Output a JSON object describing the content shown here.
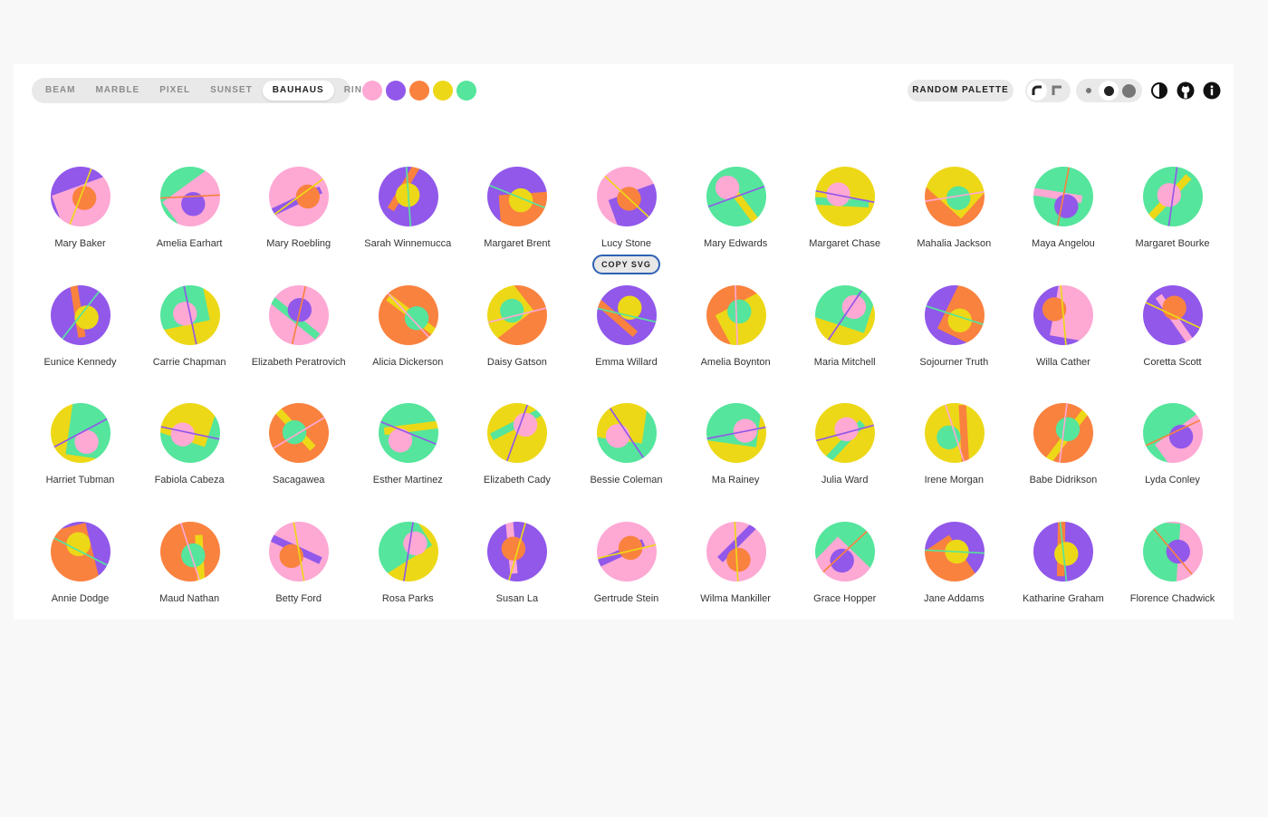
{
  "variants": [
    {
      "label": "BEAM",
      "active": false
    },
    {
      "label": "MARBLE",
      "active": false
    },
    {
      "label": "PIXEL",
      "active": false
    },
    {
      "label": "SUNSET",
      "active": false
    },
    {
      "label": "BAUHAUS",
      "active": true
    },
    {
      "label": "RING",
      "active": false
    }
  ],
  "palette": [
    "#fea8d4",
    "#9158ea",
    "#f9823f",
    "#edd817",
    "#55e59c"
  ],
  "random_palette_label": "RANDOM PALETTE",
  "shape_options": [
    "round-corner-icon",
    "square-corner-icon"
  ],
  "size_options": [
    "small-dot-icon",
    "medium-dot-icon",
    "large-dot-icon"
  ],
  "icons": [
    "contrast-icon",
    "github-icon",
    "info-icon"
  ],
  "copy_svg_label": "COPY SVG",
  "avatars": [
    {
      "name": "Mary Baker",
      "colors": [
        "#9158ea",
        "#fea8d4",
        "#f9823f",
        "#edd817"
      ]
    },
    {
      "name": "Amelia Earhart",
      "colors": [
        "#55e59c",
        "#fea8d4",
        "#9158ea",
        "#f9823f"
      ]
    },
    {
      "name": "Mary Roebling",
      "colors": [
        "#fea8d4",
        "#9158ea",
        "#f9823f",
        "#edd817"
      ]
    },
    {
      "name": "Sarah Winnemucca",
      "colors": [
        "#9158ea",
        "#f9823f",
        "#edd817",
        "#55e59c"
      ]
    },
    {
      "name": "Margaret Brent",
      "colors": [
        "#9158ea",
        "#f9823f",
        "#edd817",
        "#55e59c"
      ]
    },
    {
      "name": "Lucy Stone",
      "colors": [
        "#fea8d4",
        "#9158ea",
        "#f9823f",
        "#edd817"
      ]
    },
    {
      "name": "Mary Edwards",
      "colors": [
        "#55e59c",
        "#edd817",
        "#fea8d4",
        "#9158ea"
      ]
    },
    {
      "name": "Margaret Chase",
      "colors": [
        "#edd817",
        "#55e59c",
        "#fea8d4",
        "#9158ea"
      ]
    },
    {
      "name": "Mahalia Jackson",
      "colors": [
        "#f9823f",
        "#edd817",
        "#55e59c",
        "#fea8d4"
      ]
    },
    {
      "name": "Maya Angelou",
      "colors": [
        "#55e59c",
        "#fea8d4",
        "#9158ea",
        "#f9823f"
      ]
    },
    {
      "name": "Margaret Bourke",
      "colors": [
        "#55e59c",
        "#edd817",
        "#fea8d4",
        "#9158ea"
      ]
    },
    {
      "name": "Eunice Kennedy",
      "colors": [
        "#9158ea",
        "#f9823f",
        "#edd817",
        "#55e59c"
      ]
    },
    {
      "name": "Carrie Chapman",
      "colors": [
        "#edd817",
        "#55e59c",
        "#fea8d4",
        "#9158ea"
      ]
    },
    {
      "name": "Elizabeth Peratrovich",
      "colors": [
        "#fea8d4",
        "#55e59c",
        "#9158ea",
        "#f9823f"
      ]
    },
    {
      "name": "Alicia Dickerson",
      "colors": [
        "#f9823f",
        "#edd817",
        "#55e59c",
        "#fea8d4"
      ]
    },
    {
      "name": "Daisy Gatson",
      "colors": [
        "#f9823f",
        "#edd817",
        "#55e59c",
        "#fea8d4"
      ]
    },
    {
      "name": "Emma Willard",
      "colors": [
        "#9158ea",
        "#f9823f",
        "#edd817",
        "#55e59c"
      ]
    },
    {
      "name": "Amelia Boynton",
      "colors": [
        "#f9823f",
        "#edd817",
        "#55e59c",
        "#fea8d4"
      ]
    },
    {
      "name": "Maria Mitchell",
      "colors": [
        "#edd817",
        "#55e59c",
        "#fea8d4",
        "#9158ea"
      ]
    },
    {
      "name": "Sojourner Truth",
      "colors": [
        "#9158ea",
        "#f9823f",
        "#edd817",
        "#55e59c"
      ]
    },
    {
      "name": "Willa Cather",
      "colors": [
        "#9158ea",
        "#fea8d4",
        "#f9823f",
        "#edd817"
      ]
    },
    {
      "name": "Coretta Scott",
      "colors": [
        "#9158ea",
        "#fea8d4",
        "#f9823f",
        "#edd817"
      ]
    },
    {
      "name": "Harriet Tubman",
      "colors": [
        "#edd817",
        "#55e59c",
        "#fea8d4",
        "#9158ea"
      ]
    },
    {
      "name": "Fabiola Cabeza",
      "colors": [
        "#55e59c",
        "#edd817",
        "#fea8d4",
        "#9158ea"
      ]
    },
    {
      "name": "Sacagawea",
      "colors": [
        "#f9823f",
        "#edd817",
        "#55e59c",
        "#fea8d4"
      ]
    },
    {
      "name": "Esther Martinez",
      "colors": [
        "#55e59c",
        "#edd817",
        "#fea8d4",
        "#9158ea"
      ]
    },
    {
      "name": "Elizabeth Cady",
      "colors": [
        "#edd817",
        "#55e59c",
        "#fea8d4",
        "#9158ea"
      ]
    },
    {
      "name": "Bessie Coleman",
      "colors": [
        "#55e59c",
        "#edd817",
        "#fea8d4",
        "#9158ea"
      ]
    },
    {
      "name": "Ma Rainey",
      "colors": [
        "#edd817",
        "#55e59c",
        "#fea8d4",
        "#9158ea"
      ]
    },
    {
      "name": "Julia Ward",
      "colors": [
        "#edd817",
        "#55e59c",
        "#fea8d4",
        "#9158ea"
      ]
    },
    {
      "name": "Irene Morgan",
      "colors": [
        "#edd817",
        "#f9823f",
        "#55e59c",
        "#fea8d4"
      ]
    },
    {
      "name": "Babe Didrikson",
      "colors": [
        "#f9823f",
        "#edd817",
        "#55e59c",
        "#fea8d4"
      ]
    },
    {
      "name": "Lyda Conley",
      "colors": [
        "#55e59c",
        "#fea8d4",
        "#9158ea",
        "#f9823f"
      ]
    },
    {
      "name": "Annie Dodge",
      "colors": [
        "#9158ea",
        "#f9823f",
        "#edd817",
        "#55e59c"
      ]
    },
    {
      "name": "Maud Nathan",
      "colors": [
        "#f9823f",
        "#edd817",
        "#55e59c",
        "#fea8d4"
      ]
    },
    {
      "name": "Betty Ford",
      "colors": [
        "#fea8d4",
        "#9158ea",
        "#f9823f",
        "#edd817"
      ]
    },
    {
      "name": "Rosa Parks",
      "colors": [
        "#edd817",
        "#55e59c",
        "#fea8d4",
        "#9158ea"
      ]
    },
    {
      "name": "Susan La",
      "colors": [
        "#9158ea",
        "#fea8d4",
        "#f9823f",
        "#edd817"
      ]
    },
    {
      "name": "Gertrude Stein",
      "colors": [
        "#fea8d4",
        "#9158ea",
        "#f9823f",
        "#edd817"
      ]
    },
    {
      "name": "Wilma Mankiller",
      "colors": [
        "#fea8d4",
        "#9158ea",
        "#f9823f",
        "#edd817"
      ]
    },
    {
      "name": "Grace Hopper",
      "colors": [
        "#55e59c",
        "#fea8d4",
        "#9158ea",
        "#f9823f"
      ]
    },
    {
      "name": "Jane Addams",
      "colors": [
        "#9158ea",
        "#f9823f",
        "#edd817",
        "#55e59c"
      ]
    },
    {
      "name": "Katharine Graham",
      "colors": [
        "#9158ea",
        "#f9823f",
        "#edd817",
        "#55e59c"
      ]
    },
    {
      "name": "Florence Chadwick",
      "colors": [
        "#fea8d4",
        "#55e59c",
        "#9158ea",
        "#f9823f"
      ]
    }
  ]
}
